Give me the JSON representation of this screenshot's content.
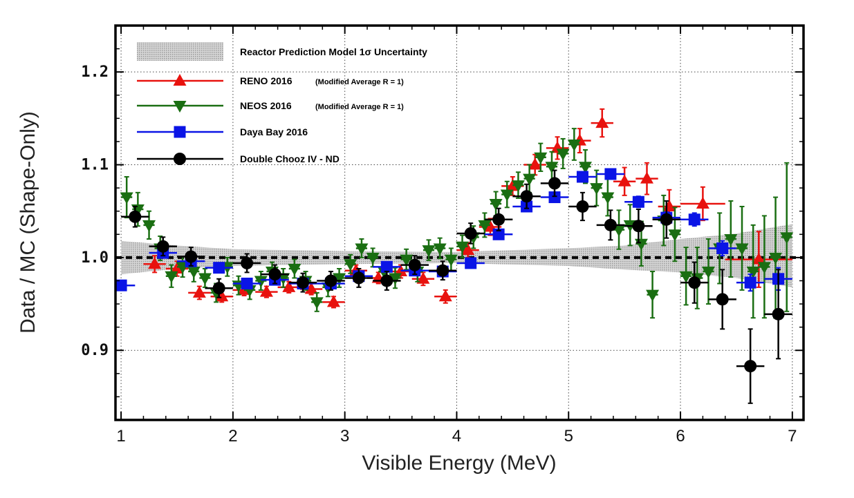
{
  "chart_data": {
    "type": "scatter",
    "xlabel": "Visible Energy (MeV)",
    "ylabel": "Data / MC (Shape-Only)",
    "xlim": [
      0.95,
      7.1
    ],
    "ylim": [
      0.825,
      1.25
    ],
    "x_ticks": [
      1,
      2,
      3,
      4,
      5,
      6,
      7
    ],
    "x_tick_labels": [
      "1",
      "2",
      "3",
      "4",
      "5",
      "6",
      "7"
    ],
    "y_ticks": [
      0.9,
      1.0,
      1.1,
      1.2
    ],
    "y_tick_labels": [
      "0.9",
      "1.0",
      "1.1",
      "1.2"
    ],
    "grid": true,
    "grid_style": "dotted",
    "reference_line": {
      "y": 1.0,
      "style": "dashed",
      "color": "#000000"
    },
    "legend": {
      "placement": "top-left",
      "band_label": "Reactor Prediction Model 1σ Uncertainty",
      "entries": [
        {
          "series": 0,
          "label": "RENO 2016",
          "note": "(Modified Average R = 1)"
        },
        {
          "series": 1,
          "label": "NEOS 2016",
          "note": "(Modified Average R = 1)"
        },
        {
          "series": 2,
          "label": "Daya Bay 2016",
          "note": ""
        },
        {
          "series": 3,
          "label": "Double Chooz IV - ND",
          "note": ""
        }
      ]
    },
    "band": {
      "name": "Reactor Prediction Model 1σ Uncertainty",
      "color": "#bdbdbd",
      "x": [
        1.0,
        1.5,
        2.0,
        3.0,
        4.0,
        5.0,
        5.5,
        6.0,
        6.5,
        7.0
      ],
      "lower": [
        0.982,
        0.988,
        0.991,
        0.993,
        0.994,
        0.991,
        0.987,
        0.984,
        0.978,
        0.968
      ],
      "upper": [
        1.018,
        1.013,
        1.009,
        1.007,
        1.006,
        1.01,
        1.013,
        1.02,
        1.026,
        1.036
      ]
    },
    "series": [
      {
        "name": "RENO 2016",
        "marker": "triangle-up",
        "color": "#e8120e",
        "x": [
          1.3,
          1.5,
          1.7,
          1.9,
          2.1,
          2.3,
          2.5,
          2.7,
          2.9,
          3.1,
          3.3,
          3.5,
          3.7,
          3.9,
          4.1,
          4.3,
          4.5,
          4.7,
          4.9,
          5.1,
          5.3,
          5.5,
          5.7,
          5.9,
          6.2,
          6.7
        ],
        "y": [
          0.993,
          0.988,
          0.962,
          0.958,
          0.965,
          0.963,
          0.968,
          0.966,
          0.952,
          0.986,
          0.978,
          0.985,
          0.977,
          0.958,
          1.008,
          1.033,
          1.077,
          1.1,
          1.118,
          1.126,
          1.145,
          1.082,
          1.085,
          1.055,
          1.058,
          0.998
        ],
        "yerr": [
          0.009,
          0.008,
          0.007,
          0.006,
          0.006,
          0.006,
          0.006,
          0.006,
          0.006,
          0.006,
          0.006,
          0.007,
          0.007,
          0.007,
          0.008,
          0.009,
          0.01,
          0.011,
          0.012,
          0.013,
          0.015,
          0.015,
          0.017,
          0.018,
          0.018,
          0.03
        ],
        "xerr": [
          0.1,
          0.1,
          0.1,
          0.1,
          0.1,
          0.1,
          0.1,
          0.1,
          0.1,
          0.1,
          0.1,
          0.1,
          0.1,
          0.1,
          0.1,
          0.1,
          0.1,
          0.1,
          0.1,
          0.1,
          0.1,
          0.1,
          0.1,
          0.1,
          0.2,
          0.3
        ]
      },
      {
        "name": "NEOS 2016",
        "marker": "triangle-down",
        "color": "#1a6e12",
        "x": [
          1.05,
          1.15,
          1.25,
          1.35,
          1.45,
          1.55,
          1.65,
          1.75,
          1.85,
          1.95,
          2.05,
          2.15,
          2.25,
          2.35,
          2.45,
          2.55,
          2.65,
          2.75,
          2.85,
          2.95,
          3.05,
          3.15,
          3.25,
          3.35,
          3.45,
          3.55,
          3.65,
          3.75,
          3.85,
          3.95,
          4.05,
          4.15,
          4.25,
          4.35,
          4.45,
          4.55,
          4.65,
          4.75,
          4.85,
          4.95,
          5.05,
          5.15,
          5.25,
          5.35,
          5.45,
          5.55,
          5.65,
          5.75,
          5.85,
          5.95,
          6.05,
          6.15,
          6.25,
          6.35,
          6.45,
          6.55,
          6.65,
          6.75,
          6.85,
          6.95
        ],
        "y": [
          1.065,
          1.052,
          1.035,
          1.01,
          0.98,
          0.99,
          0.985,
          0.978,
          0.962,
          0.99,
          0.97,
          0.965,
          0.975,
          0.985,
          0.978,
          0.988,
          0.975,
          0.952,
          0.968,
          0.978,
          0.993,
          1.01,
          1.0,
          0.985,
          0.978,
          0.998,
          0.985,
          1.008,
          1.01,
          0.998,
          1.012,
          1.022,
          1.035,
          1.058,
          1.068,
          1.078,
          1.085,
          1.108,
          1.098,
          1.112,
          1.122,
          1.098,
          1.075,
          1.065,
          1.03,
          1.035,
          1.015,
          0.96,
          1.04,
          1.025,
          0.98,
          0.978,
          0.985,
          1.01,
          1.02,
          1.01,
          0.985,
          0.99,
          1.0,
          1.022
        ],
        "yerr": [
          0.022,
          0.018,
          0.015,
          0.013,
          0.012,
          0.011,
          0.011,
          0.01,
          0.01,
          0.01,
          0.01,
          0.01,
          0.01,
          0.01,
          0.01,
          0.01,
          0.01,
          0.01,
          0.01,
          0.01,
          0.01,
          0.01,
          0.01,
          0.01,
          0.011,
          0.011,
          0.011,
          0.011,
          0.011,
          0.012,
          0.012,
          0.012,
          0.013,
          0.013,
          0.014,
          0.014,
          0.015,
          0.015,
          0.016,
          0.016,
          0.017,
          0.018,
          0.019,
          0.02,
          0.021,
          0.022,
          0.024,
          0.025,
          0.027,
          0.029,
          0.031,
          0.033,
          0.035,
          0.038,
          0.041,
          0.045,
          0.05,
          0.055,
          0.065,
          0.08
        ],
        "xerr": [
          0.05,
          0.05,
          0.05,
          0.05,
          0.05,
          0.05,
          0.05,
          0.05,
          0.05,
          0.05,
          0.05,
          0.05,
          0.05,
          0.05,
          0.05,
          0.05,
          0.05,
          0.05,
          0.05,
          0.05,
          0.05,
          0.05,
          0.05,
          0.05,
          0.05,
          0.05,
          0.05,
          0.05,
          0.05,
          0.05,
          0.05,
          0.05,
          0.05,
          0.05,
          0.05,
          0.05,
          0.05,
          0.05,
          0.05,
          0.05,
          0.05,
          0.05,
          0.05,
          0.05,
          0.05,
          0.05,
          0.05,
          0.05,
          0.05,
          0.05,
          0.05,
          0.05,
          0.05,
          0.05,
          0.05,
          0.05,
          0.05,
          0.05,
          0.05,
          0.05
        ]
      },
      {
        "name": "Daya Bay 2016",
        "marker": "square",
        "color": "#0a14e6",
        "x": [
          1.0,
          1.375,
          1.625,
          1.875,
          2.125,
          2.375,
          2.625,
          2.875,
          3.125,
          3.375,
          3.625,
          3.875,
          4.125,
          4.375,
          4.625,
          4.875,
          5.125,
          5.375,
          5.625,
          5.875,
          6.125,
          6.375,
          6.625,
          6.875
        ],
        "y": [
          0.97,
          1.005,
          0.996,
          0.989,
          0.972,
          0.976,
          0.972,
          0.972,
          0.98,
          0.99,
          0.986,
          0.985,
          0.994,
          1.025,
          1.055,
          1.065,
          1.087,
          1.09,
          1.06,
          1.043,
          1.041,
          1.01,
          0.973,
          0.977
        ],
        "yerr": [
          0.004,
          0.004,
          0.004,
          0.004,
          0.004,
          0.004,
          0.004,
          0.004,
          0.004,
          0.004,
          0.004,
          0.004,
          0.004,
          0.005,
          0.005,
          0.005,
          0.005,
          0.005,
          0.006,
          0.006,
          0.007,
          0.008,
          0.009,
          0.012
        ],
        "xerr": [
          0.125,
          0.125,
          0.125,
          0.125,
          0.125,
          0.125,
          0.125,
          0.125,
          0.125,
          0.125,
          0.125,
          0.125,
          0.125,
          0.125,
          0.125,
          0.125,
          0.125,
          0.125,
          0.125,
          0.125,
          0.125,
          0.125,
          0.125,
          0.125
        ]
      },
      {
        "name": "Double Chooz IV - ND",
        "marker": "circle",
        "color": "#000000",
        "x": [
          1.125,
          1.375,
          1.625,
          1.875,
          2.125,
          2.375,
          2.625,
          2.875,
          3.125,
          3.375,
          3.625,
          3.875,
          4.125,
          4.375,
          4.625,
          4.875,
          5.125,
          5.375,
          5.625,
          5.875,
          6.125,
          6.375,
          6.625,
          6.875
        ],
        "y": [
          1.044,
          1.012,
          1.001,
          0.967,
          0.994,
          0.982,
          0.973,
          0.975,
          0.978,
          0.975,
          0.992,
          0.986,
          1.026,
          1.041,
          1.066,
          1.08,
          1.055,
          1.035,
          1.034,
          1.041,
          0.973,
          0.955,
          0.883,
          0.939
        ],
        "yerr": [
          0.011,
          0.01,
          0.01,
          0.01,
          0.01,
          0.01,
          0.01,
          0.01,
          0.01,
          0.01,
          0.01,
          0.01,
          0.011,
          0.012,
          0.013,
          0.014,
          0.015,
          0.016,
          0.018,
          0.02,
          0.022,
          0.032,
          0.04,
          0.048
        ],
        "xerr": [
          0.125,
          0.125,
          0.125,
          0.125,
          0.125,
          0.125,
          0.125,
          0.125,
          0.125,
          0.125,
          0.125,
          0.125,
          0.125,
          0.125,
          0.125,
          0.125,
          0.125,
          0.125,
          0.125,
          0.125,
          0.125,
          0.125,
          0.125,
          0.125
        ]
      }
    ]
  }
}
